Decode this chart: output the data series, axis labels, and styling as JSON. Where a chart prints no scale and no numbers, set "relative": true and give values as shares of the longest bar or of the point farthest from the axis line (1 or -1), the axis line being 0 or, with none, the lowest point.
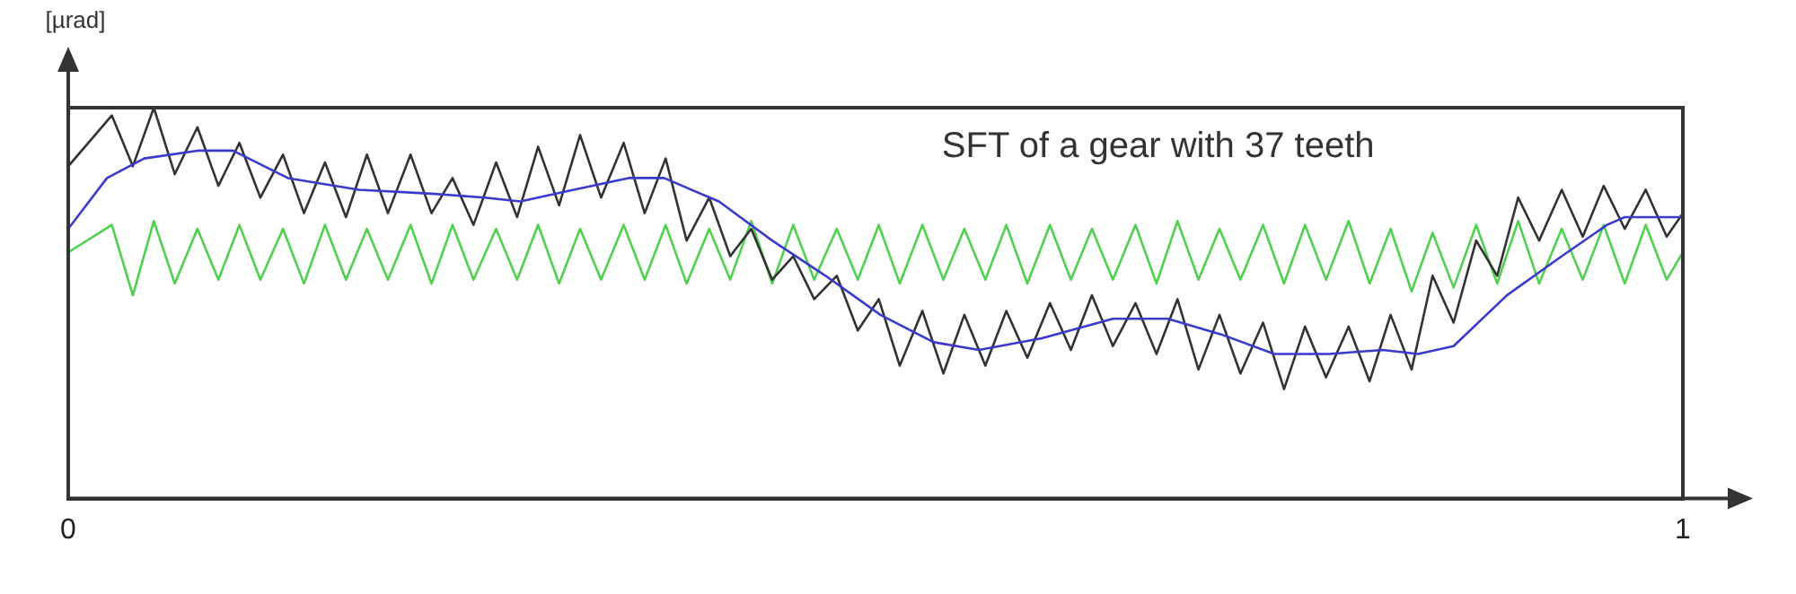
{
  "chart_data": {
    "type": "line",
    "title": "SFT of a gear with 37 teeth",
    "ylabel": "[µrad]",
    "relative": true,
    "marker": "none",
    "xlim": [
      0,
      1
    ],
    "xticks": [
      0,
      1
    ],
    "tick_labels": "x",
    "series": [
      {
        "color": "#3a3acc",
        "x": [
          0,
          0.024,
          0.047,
          0.08,
          0.102,
          0.136,
          0.18,
          0.225,
          0.258,
          0.28,
          0.313,
          0.347,
          0.369,
          0.403,
          0.436,
          0.469,
          0.503,
          0.536,
          0.564,
          0.603,
          0.647,
          0.681,
          0.714,
          0.747,
          0.781,
          0.814,
          0.836,
          0.858,
          0.891,
          0.925,
          0.953,
          0.964,
          1
        ],
        "values": [
          0.69,
          0.82,
          0.87,
          0.89,
          0.89,
          0.82,
          0.79,
          0.78,
          0.77,
          0.76,
          0.79,
          0.82,
          0.82,
          0.76,
          0.66,
          0.57,
          0.47,
          0.4,
          0.38,
          0.41,
          0.46,
          0.46,
          0.42,
          0.37,
          0.37,
          0.38,
          0.37,
          0.39,
          0.52,
          0.62,
          0.7,
          0.72,
          0.72
        ]
      },
      {
        "color": "#333333",
        "x": [
          0,
          0.027,
          0.04,
          0.053,
          0.066,
          0.08,
          0.093,
          0.106,
          0.119,
          0.133,
          0.146,
          0.159,
          0.172,
          0.185,
          0.198,
          0.212,
          0.225,
          0.238,
          0.251,
          0.265,
          0.278,
          0.291,
          0.304,
          0.317,
          0.33,
          0.344,
          0.357,
          0.37,
          0.383,
          0.397,
          0.41,
          0.423,
          0.436,
          0.449,
          0.462,
          0.476,
          0.489,
          0.502,
          0.515,
          0.529,
          0.542,
          0.555,
          0.568,
          0.581,
          0.594,
          0.608,
          0.621,
          0.634,
          0.647,
          0.661,
          0.674,
          0.687,
          0.7,
          0.713,
          0.726,
          0.74,
          0.753,
          0.766,
          0.779,
          0.793,
          0.806,
          0.819,
          0.832,
          0.845,
          0.858,
          0.872,
          0.885,
          0.898,
          0.911,
          0.925,
          0.938,
          0.951,
          0.964,
          0.977,
          0.99,
          1
        ],
        "values": [
          0.85,
          0.98,
          0.85,
          1.0,
          0.83,
          0.95,
          0.8,
          0.91,
          0.77,
          0.88,
          0.73,
          0.86,
          0.72,
          0.88,
          0.73,
          0.88,
          0.73,
          0.82,
          0.7,
          0.86,
          0.72,
          0.9,
          0.75,
          0.93,
          0.77,
          0.91,
          0.73,
          0.87,
          0.66,
          0.77,
          0.62,
          0.69,
          0.56,
          0.62,
          0.51,
          0.57,
          0.43,
          0.51,
          0.34,
          0.48,
          0.32,
          0.47,
          0.34,
          0.48,
          0.36,
          0.5,
          0.38,
          0.52,
          0.39,
          0.5,
          0.37,
          0.51,
          0.33,
          0.47,
          0.32,
          0.45,
          0.28,
          0.44,
          0.31,
          0.44,
          0.3,
          0.47,
          0.33,
          0.57,
          0.45,
          0.66,
          0.57,
          0.77,
          0.66,
          0.79,
          0.67,
          0.8,
          0.69,
          0.79,
          0.67,
          0.73
        ]
      },
      {
        "color": "#4fd14f",
        "x": [
          0,
          0.027,
          0.04,
          0.053,
          0.066,
          0.08,
          0.093,
          0.106,
          0.119,
          0.133,
          0.146,
          0.159,
          0.172,
          0.185,
          0.198,
          0.212,
          0.225,
          0.238,
          0.251,
          0.265,
          0.278,
          0.291,
          0.304,
          0.317,
          0.33,
          0.344,
          0.357,
          0.37,
          0.383,
          0.397,
          0.41,
          0.423,
          0.436,
          0.449,
          0.462,
          0.476,
          0.489,
          0.502,
          0.515,
          0.529,
          0.542,
          0.555,
          0.568,
          0.581,
          0.594,
          0.608,
          0.621,
          0.634,
          0.647,
          0.661,
          0.674,
          0.687,
          0.7,
          0.713,
          0.726,
          0.74,
          0.753,
          0.766,
          0.779,
          0.793,
          0.806,
          0.819,
          0.832,
          0.845,
          0.858,
          0.872,
          0.885,
          0.898,
          0.911,
          0.925,
          0.938,
          0.951,
          0.964,
          0.977,
          0.99,
          1
        ],
        "values": [
          0.63,
          0.7,
          0.52,
          0.71,
          0.55,
          0.69,
          0.56,
          0.7,
          0.56,
          0.69,
          0.55,
          0.7,
          0.56,
          0.69,
          0.56,
          0.7,
          0.55,
          0.7,
          0.56,
          0.69,
          0.56,
          0.7,
          0.55,
          0.69,
          0.56,
          0.7,
          0.56,
          0.7,
          0.55,
          0.69,
          0.56,
          0.71,
          0.55,
          0.7,
          0.56,
          0.69,
          0.56,
          0.7,
          0.55,
          0.7,
          0.56,
          0.69,
          0.56,
          0.7,
          0.55,
          0.7,
          0.56,
          0.69,
          0.56,
          0.7,
          0.55,
          0.71,
          0.56,
          0.69,
          0.56,
          0.7,
          0.55,
          0.7,
          0.56,
          0.71,
          0.55,
          0.69,
          0.53,
          0.68,
          0.54,
          0.7,
          0.55,
          0.71,
          0.55,
          0.69,
          0.56,
          0.7,
          0.55,
          0.7,
          0.56,
          0.63
        ]
      }
    ]
  }
}
